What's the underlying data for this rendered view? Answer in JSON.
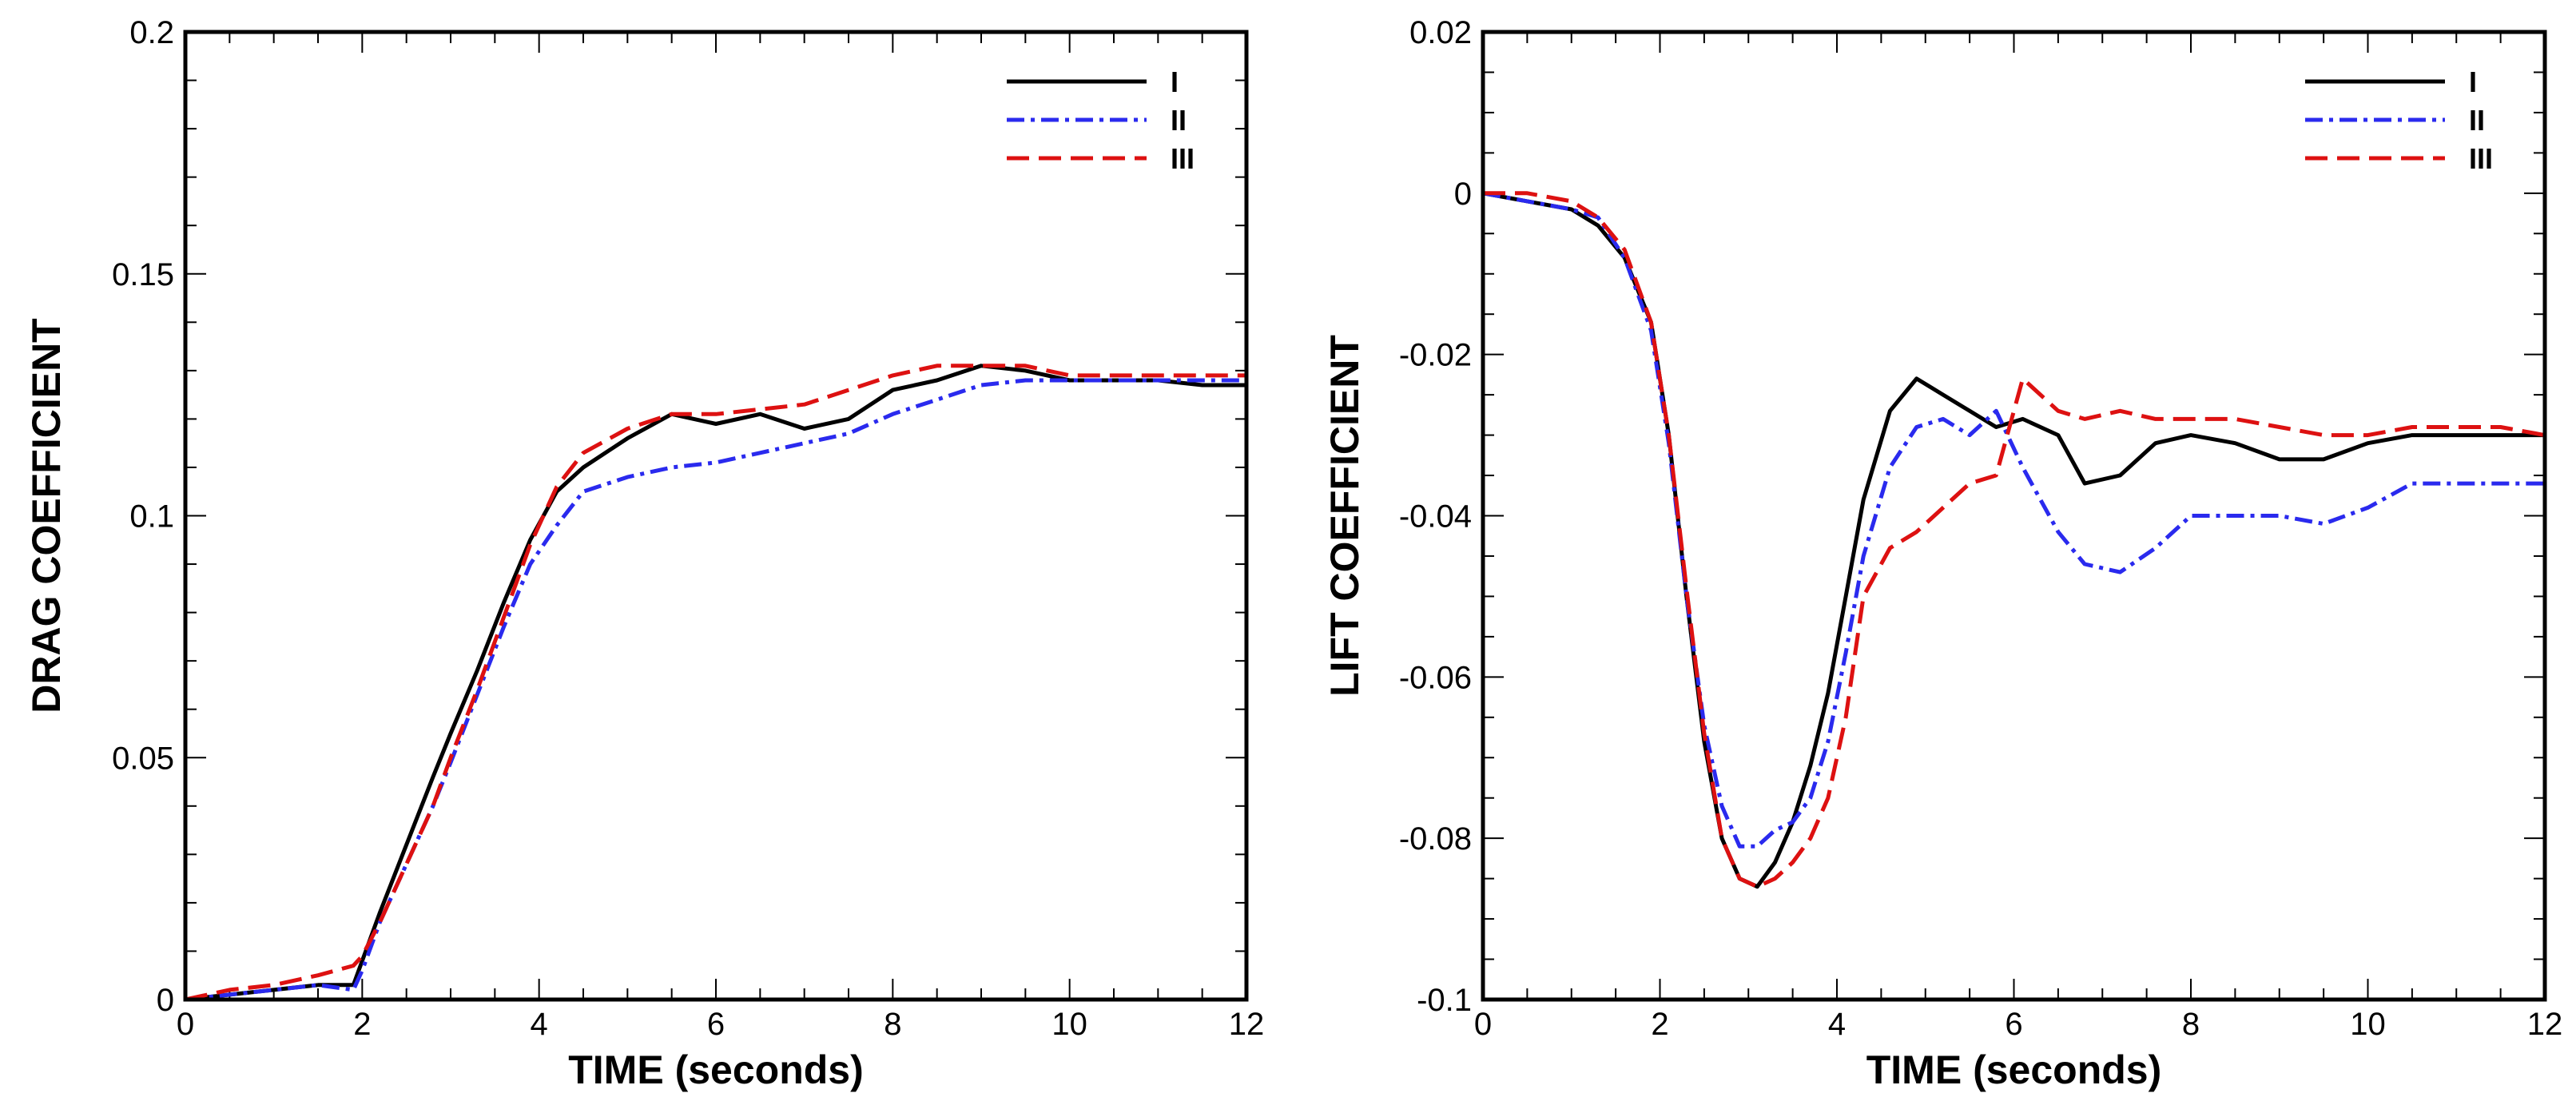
{
  "chart_data": [
    {
      "type": "line",
      "xlabel": "TIME (seconds)",
      "ylabel": "DRAG COEFFICIENT",
      "xlim": [
        0,
        12
      ],
      "ylim": [
        0,
        0.2
      ],
      "x_ticks": [
        "0",
        "2",
        "4",
        "6",
        "8",
        "10",
        "12"
      ],
      "y_ticks": [
        "0",
        "0.05",
        "0.1",
        "0.15",
        "0.2"
      ],
      "legend_position": "top-right",
      "series": [
        {
          "name": "I",
          "color": "#000000",
          "style": "solid",
          "x": [
            0,
            0.5,
            1.0,
            1.5,
            1.9,
            2.0,
            2.2,
            2.5,
            2.8,
            3.0,
            3.3,
            3.6,
            3.9,
            4.2,
            4.5,
            5.0,
            5.5,
            6.0,
            6.5,
            7.0,
            7.5,
            8.0,
            8.5,
            9.0,
            9.5,
            10.0,
            10.5,
            11.0,
            11.5,
            12.0
          ],
          "y": [
            0,
            0.001,
            0.002,
            0.003,
            0.003,
            0.008,
            0.018,
            0.032,
            0.046,
            0.055,
            0.068,
            0.082,
            0.095,
            0.105,
            0.11,
            0.116,
            0.121,
            0.119,
            0.121,
            0.118,
            0.12,
            0.126,
            0.128,
            0.131,
            0.13,
            0.128,
            0.128,
            0.128,
            0.127,
            0.127
          ]
        },
        {
          "name": "II",
          "color": "#2a2aee",
          "style": "dash-dot",
          "x": [
            0,
            0.5,
            1.0,
            1.5,
            1.9,
            2.0,
            2.2,
            2.5,
            2.8,
            3.0,
            3.3,
            3.6,
            3.9,
            4.2,
            4.5,
            5.0,
            5.5,
            6.0,
            6.5,
            7.0,
            7.5,
            8.0,
            8.5,
            9.0,
            9.5,
            10.0,
            10.5,
            11.0,
            11.5,
            12.0
          ],
          "y": [
            0,
            0.001,
            0.002,
            0.003,
            0.002,
            0.006,
            0.016,
            0.028,
            0.04,
            0.049,
            0.063,
            0.077,
            0.09,
            0.098,
            0.105,
            0.108,
            0.11,
            0.111,
            0.113,
            0.115,
            0.117,
            0.121,
            0.124,
            0.127,
            0.128,
            0.128,
            0.128,
            0.128,
            0.128,
            0.128
          ]
        },
        {
          "name": "III",
          "color": "#dd1111",
          "style": "dashed",
          "x": [
            0,
            0.5,
            1.0,
            1.5,
            1.9,
            2.0,
            2.2,
            2.5,
            2.8,
            3.0,
            3.3,
            3.6,
            3.9,
            4.2,
            4.5,
            5.0,
            5.5,
            6.0,
            6.5,
            7.0,
            7.5,
            8.0,
            8.5,
            9.0,
            9.5,
            10.0,
            10.5,
            11.0,
            11.5,
            12.0
          ],
          "y": [
            0,
            0.002,
            0.003,
            0.005,
            0.007,
            0.009,
            0.016,
            0.028,
            0.04,
            0.05,
            0.064,
            0.079,
            0.094,
            0.106,
            0.113,
            0.118,
            0.121,
            0.121,
            0.122,
            0.123,
            0.126,
            0.129,
            0.131,
            0.131,
            0.131,
            0.129,
            0.129,
            0.129,
            0.129,
            0.129
          ]
        }
      ]
    },
    {
      "type": "line",
      "xlabel": "TIME (seconds)",
      "ylabel": "LIFT COEFFICIENT",
      "xlim": [
        0,
        12
      ],
      "ylim": [
        -0.1,
        0.02
      ],
      "x_ticks": [
        "0",
        "2",
        "4",
        "6",
        "8",
        "10",
        "12"
      ],
      "y_ticks": [
        "-0.1",
        "-0.08",
        "-0.06",
        "-0.04",
        "-0.02",
        "0",
        "0.02"
      ],
      "legend_position": "top-right",
      "series": [
        {
          "name": "I",
          "color": "#000000",
          "style": "solid",
          "x": [
            0,
            0.5,
            1.0,
            1.3,
            1.6,
            1.9,
            2.1,
            2.3,
            2.5,
            2.7,
            2.9,
            3.1,
            3.3,
            3.5,
            3.7,
            3.9,
            4.1,
            4.3,
            4.6,
            4.9,
            5.2,
            5.5,
            5.8,
            6.1,
            6.5,
            6.8,
            7.2,
            7.6,
            8.0,
            8.5,
            9.0,
            9.5,
            10.0,
            10.5,
            11.0,
            11.5,
            12.0
          ],
          "y": [
            0,
            -0.001,
            -0.002,
            -0.004,
            -0.008,
            -0.016,
            -0.03,
            -0.05,
            -0.068,
            -0.08,
            -0.085,
            -0.086,
            -0.083,
            -0.078,
            -0.071,
            -0.062,
            -0.05,
            -0.038,
            -0.027,
            -0.023,
            -0.025,
            -0.027,
            -0.029,
            -0.028,
            -0.03,
            -0.036,
            -0.035,
            -0.031,
            -0.03,
            -0.031,
            -0.033,
            -0.033,
            -0.031,
            -0.03,
            -0.03,
            -0.03,
            -0.03
          ]
        },
        {
          "name": "II",
          "color": "#2a2aee",
          "style": "dash-dot",
          "x": [
            0,
            0.5,
            1.0,
            1.3,
            1.6,
            1.9,
            2.1,
            2.3,
            2.5,
            2.7,
            2.9,
            3.1,
            3.3,
            3.5,
            3.7,
            3.9,
            4.1,
            4.3,
            4.6,
            4.9,
            5.2,
            5.5,
            5.8,
            6.1,
            6.5,
            6.8,
            7.2,
            7.6,
            8.0,
            8.5,
            9.0,
            9.5,
            10.0,
            10.5,
            11.0,
            11.5,
            12.0
          ],
          "y": [
            0,
            -0.001,
            -0.002,
            -0.003,
            -0.008,
            -0.017,
            -0.031,
            -0.05,
            -0.066,
            -0.076,
            -0.081,
            -0.081,
            -0.079,
            -0.078,
            -0.075,
            -0.068,
            -0.057,
            -0.045,
            -0.034,
            -0.029,
            -0.028,
            -0.03,
            -0.027,
            -0.034,
            -0.042,
            -0.046,
            -0.047,
            -0.044,
            -0.04,
            -0.04,
            -0.04,
            -0.041,
            -0.039,
            -0.036,
            -0.036,
            -0.036,
            -0.036
          ]
        },
        {
          "name": "III",
          "color": "#dd1111",
          "style": "dashed",
          "x": [
            0,
            0.5,
            1.0,
            1.3,
            1.6,
            1.9,
            2.1,
            2.3,
            2.5,
            2.7,
            2.9,
            3.1,
            3.3,
            3.5,
            3.7,
            3.9,
            4.1,
            4.3,
            4.6,
            4.9,
            5.2,
            5.5,
            5.8,
            6.1,
            6.5,
            6.8,
            7.2,
            7.6,
            8.0,
            8.5,
            9.0,
            9.5,
            10.0,
            10.5,
            11.0,
            11.5,
            12.0
          ],
          "y": [
            0,
            0,
            -0.001,
            -0.003,
            -0.007,
            -0.016,
            -0.03,
            -0.049,
            -0.067,
            -0.08,
            -0.085,
            -0.086,
            -0.085,
            -0.083,
            -0.08,
            -0.075,
            -0.065,
            -0.05,
            -0.044,
            -0.042,
            -0.039,
            -0.036,
            -0.035,
            -0.023,
            -0.027,
            -0.028,
            -0.027,
            -0.028,
            -0.028,
            -0.028,
            -0.029,
            -0.03,
            -0.03,
            -0.029,
            -0.029,
            -0.029,
            -0.03
          ]
        }
      ]
    }
  ]
}
